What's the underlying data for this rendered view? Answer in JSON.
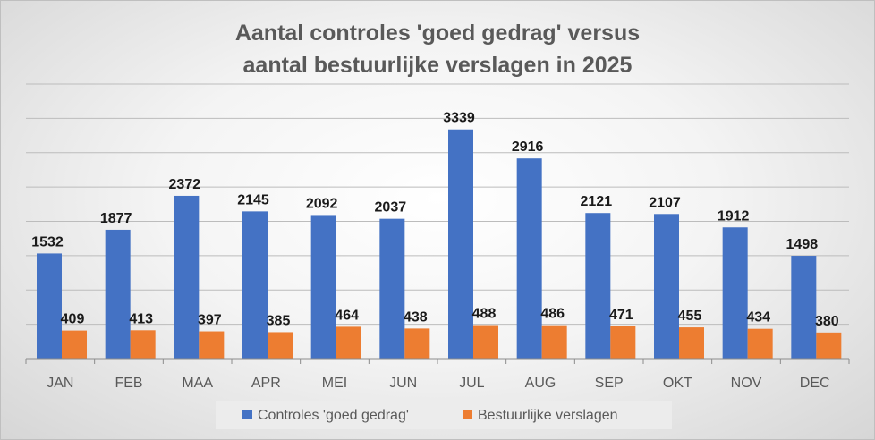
{
  "chart_data": {
    "type": "bar",
    "title": [
      "Aantal controles 'goed gedrag' versus",
      "aantal bestuurlijke verslagen in 2025"
    ],
    "categories": [
      "JAN",
      "FEB",
      "MAA",
      "APR",
      "MEI",
      "JUN",
      "JUL",
      "AUG",
      "SEP",
      "OKT",
      "NOV",
      "DEC"
    ],
    "series": [
      {
        "name": "Controles 'goed gedrag'",
        "color": "#4472c4",
        "values": [
          1532,
          1877,
          2372,
          2145,
          2092,
          2037,
          3339,
          2916,
          2121,
          2107,
          1912,
          1498
        ]
      },
      {
        "name": "Bestuurlijke verslagen",
        "color": "#ed7d31",
        "values": [
          409,
          413,
          397,
          385,
          464,
          438,
          488,
          486,
          471,
          455,
          434,
          380
        ]
      }
    ],
    "ylim": [
      0,
      4000
    ],
    "grid": true,
    "legend": "bottom",
    "data_labels": true
  }
}
